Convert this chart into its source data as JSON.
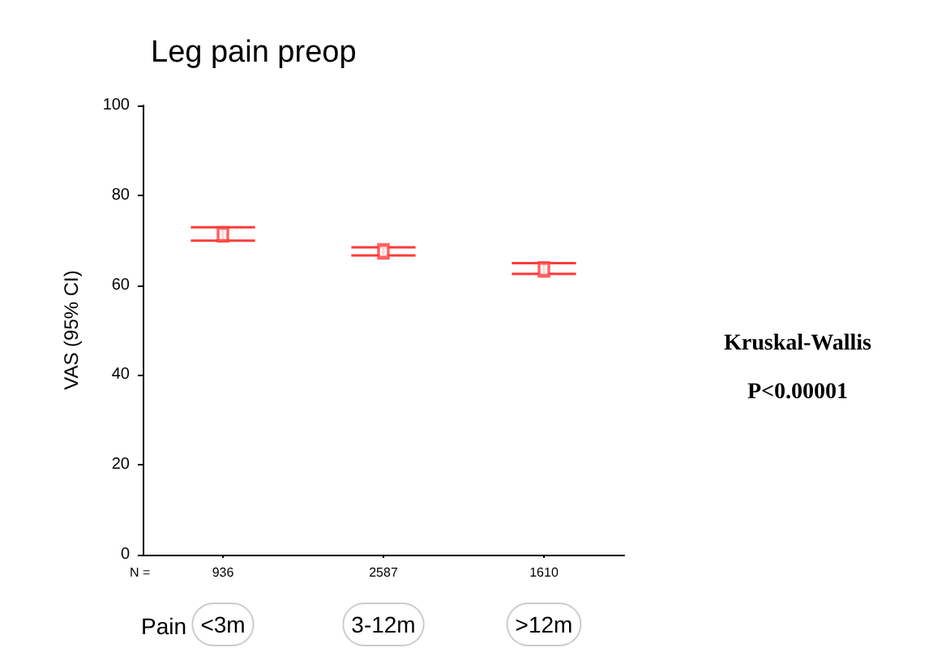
{
  "chart_data": {
    "type": "scatter",
    "title": "Leg pain preop",
    "ylabel": "VAS (95% CI)",
    "xlabel": "Pain",
    "categories": [
      "<3m",
      "3-12m",
      ">12m"
    ],
    "series": [
      {
        "color": "#ff3b3b",
        "values": [
          71.3,
          67.5,
          63.5
        ],
        "errors": [
          [
            69.9,
            72.9
          ],
          [
            66.6,
            68.4
          ],
          [
            62.5,
            64.9
          ]
        ]
      }
    ],
    "marker": "square",
    "ylim": [
      0,
      100
    ],
    "yticks": [
      0,
      20,
      40,
      60,
      80,
      100
    ],
    "grid": false,
    "annotations": [
      "N =",
      "936",
      "2587",
      "1610",
      "Kruskal-Wallis",
      "P<0.00001"
    ]
  }
}
